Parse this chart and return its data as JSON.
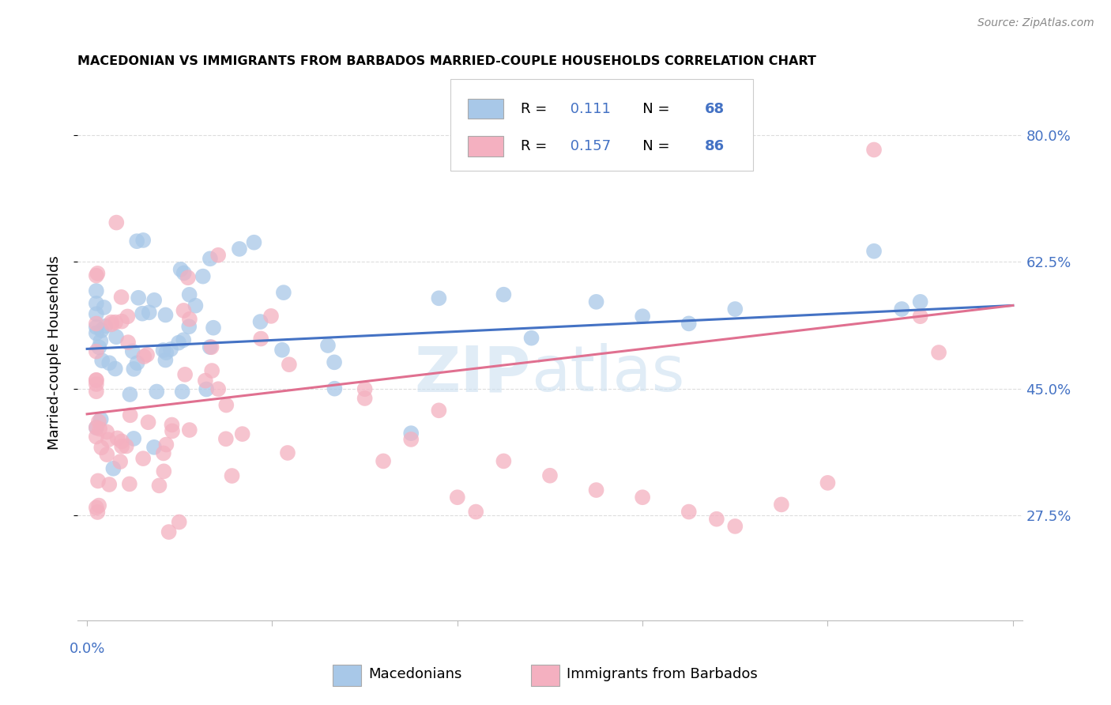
{
  "title": "MACEDONIAN VS IMMIGRANTS FROM BARBADOS MARRIED-COUPLE HOUSEHOLDS CORRELATION CHART",
  "source": "Source: ZipAtlas.com",
  "ylabel": "Married-couple Households",
  "ytick_labels": [
    "80.0%",
    "62.5%",
    "45.0%",
    "27.5%"
  ],
  "ytick_values": [
    0.8,
    0.625,
    0.45,
    0.275
  ],
  "xlim": [
    0.0,
    0.1
  ],
  "ylim": [
    0.13,
    0.87
  ],
  "color_macedonian": "#a8c8e8",
  "color_barbados": "#f4b0c0",
  "color_line_macedonian": "#4472c4",
  "color_line_barbados": "#e07090",
  "color_axis_labels": "#4472c4",
  "color_grid": "#dddddd",
  "r_mac": 0.111,
  "n_mac": 68,
  "r_bar": 0.157,
  "n_bar": 86,
  "mac_trend_x0": 0.0,
  "mac_trend_y0": 0.505,
  "mac_trend_x1": 0.1,
  "mac_trend_y1": 0.565,
  "bar_trend_x0": 0.0,
  "bar_trend_y0": 0.415,
  "bar_trend_x1": 0.1,
  "bar_trend_y1": 0.565
}
